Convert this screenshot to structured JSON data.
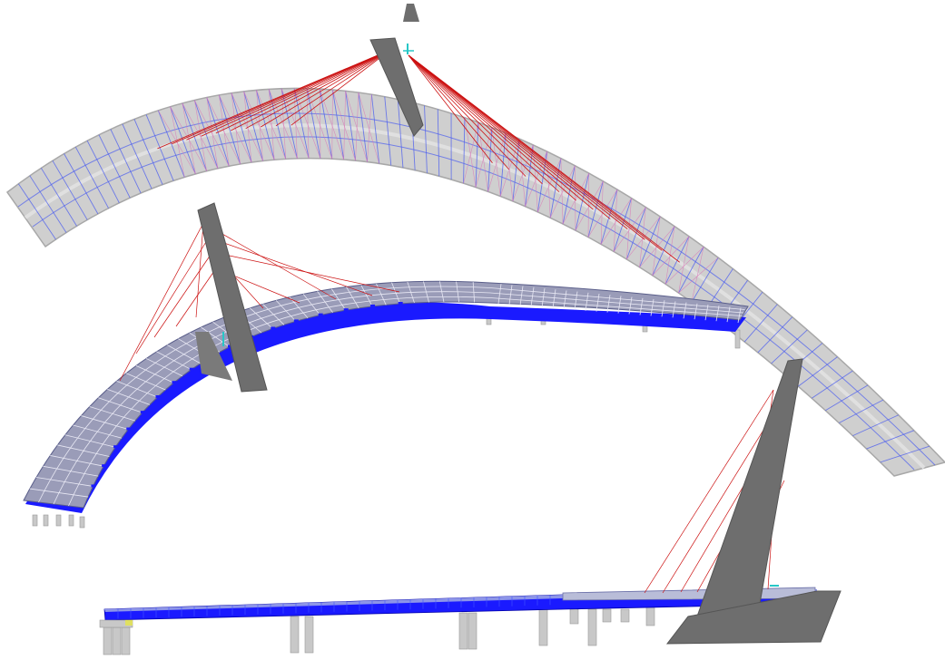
{
  "diagram": {
    "views": [
      {
        "id": "plan",
        "name": "plan-view"
      },
      {
        "id": "iso",
        "name": "isometric-view"
      },
      {
        "id": "elev",
        "name": "elevation-view"
      }
    ],
    "colors": {
      "deck_light": "#cfcfcf",
      "deck_edge": "#a8a8a8",
      "deck_blue_line": "#4a5cf0",
      "deck_blue": "#1a1aff",
      "cable": "#cc1111",
      "pylon": "#6e6e6e",
      "pylon_dark": "#555555",
      "pier": "#c8c8c8",
      "accent_cyan": "#27c7c7"
    }
  }
}
